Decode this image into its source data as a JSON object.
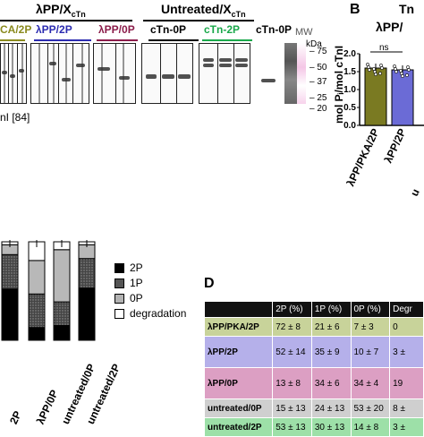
{
  "panel_a": {
    "group1_title": "λPP/X",
    "group1_sub": "cTn",
    "group2_title": "Untreated/X",
    "group2_sub": "cTn",
    "lane_labels": [
      "CA/2P",
      "λPP/2P",
      "λPP/0P",
      "cTn-0P",
      "cTn-2P",
      "cTn-0P",
      "MW"
    ],
    "lane_colors": [
      "#8a8a1e",
      "#2b2bb0",
      "#8b1c4a",
      "#000000",
      "#19a84a",
      "#000000",
      "#555555"
    ],
    "kda_unit": "kDa",
    "markers": [
      "75",
      "50",
      "37",
      "25",
      "20"
    ],
    "bottom_note": "nI [84]"
  },
  "panel_b": {
    "letter": "B",
    "top_title": "Tn",
    "header": "λPP/",
    "ns_label": "ns",
    "y_label": "mol Pᵢ/mol cTnI",
    "y_ticks": [
      "2.0",
      "1.5",
      "1.0",
      "0.5",
      "0.0"
    ],
    "x_labels": [
      "λPP/PKA/2P",
      "λPP/2P"
    ],
    "partial_bottom": "u"
  },
  "panel_c": {
    "legend": [
      {
        "label": "2P",
        "color": "#000000"
      },
      {
        "label": "1P",
        "color": "#555555"
      },
      {
        "label": "0P",
        "color": "#b3b3b3"
      },
      {
        "label": "degradation",
        "color": "#ffffff"
      }
    ],
    "x_labels": [
      "2P",
      "λPP/0P",
      "untreated/0P",
      "untreated/2P"
    ]
  },
  "panel_d": {
    "letter": "D",
    "headers": [
      "",
      "2P (%)",
      "1P (%)",
      "0P (%)",
      "Degr"
    ],
    "rows": [
      {
        "label": "λPP/PKA/2P",
        "cells": [
          "72 ± 8",
          "21 ± 6",
          "7 ± 3",
          "0"
        ],
        "color": "#c8d39a"
      },
      {
        "label": "λPP/2P",
        "cells": [
          "52 ± 14",
          "35 ± 9",
          "10 ± 7",
          "3 ±"
        ],
        "color": "#b5b0ea"
      },
      {
        "label": "λPP/0P",
        "cells": [
          "13 ± 8",
          "34 ± 6",
          "34 ± 4",
          "19"
        ],
        "color": "#dc9fc3"
      },
      {
        "label": "untreated/0P",
        "cells": [
          "15 ± 13",
          "24 ± 13",
          "53 ± 20",
          "8 ±"
        ],
        "color": "#cfcfcf"
      },
      {
        "label": "untreated/2P",
        "cells": [
          "53 ± 13",
          "30 ± 13",
          "14 ± 8",
          "3 ±"
        ],
        "color": "#9de0a8"
      }
    ]
  },
  "chart_data": [
    {
      "type": "bar",
      "panel": "B",
      "categories": [
        "λPP/PKA/2P",
        "λPP/2P"
      ],
      "values": [
        1.6,
        1.55
      ],
      "ylim": [
        0,
        2.0
      ],
      "colors": [
        "#7a7a22",
        "#6b6bd6"
      ]
    },
    {
      "type": "bar",
      "panel": "C",
      "stacked": true,
      "categories": [
        "2P",
        "λPP/0P",
        "untreated/0P",
        "untreated/2P"
      ],
      "series": [
        {
          "name": "2P",
          "values": [
            52,
            13,
            15,
            53
          ]
        },
        {
          "name": "1P",
          "values": [
            35,
            34,
            24,
            30
          ]
        },
        {
          "name": "0P",
          "values": [
            10,
            34,
            53,
            14
          ]
        },
        {
          "name": "degradation",
          "values": [
            3,
            19,
            8,
            3
          ]
        }
      ],
      "ylim": [
        0,
        100
      ]
    }
  ]
}
